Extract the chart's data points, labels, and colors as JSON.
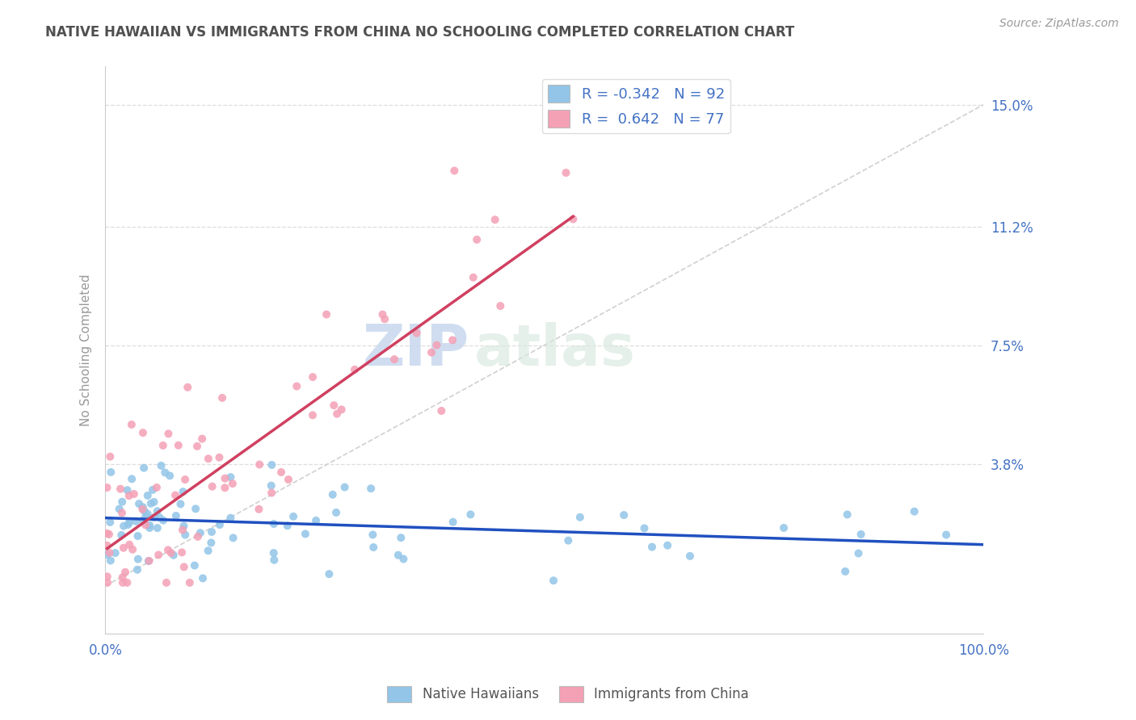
{
  "title": "NATIVE HAWAIIAN VS IMMIGRANTS FROM CHINA NO SCHOOLING COMPLETED CORRELATION CHART",
  "source": "Source: ZipAtlas.com",
  "ylabel": "No Schooling Completed",
  "ytick_labels": [
    "",
    "3.8%",
    "7.5%",
    "11.2%",
    "15.0%"
  ],
  "ytick_values": [
    0.0,
    0.038,
    0.075,
    0.112,
    0.15
  ],
  "xmin": 0.0,
  "xmax": 1.0,
  "ymin": -0.015,
  "ymax": 0.162,
  "blue_scatter_color": "#92C5E8",
  "pink_scatter_color": "#F4A0B5",
  "blue_line_color": "#2050C0",
  "pink_line_color": "#D04060",
  "ref_line_color": "#D0D0D0",
  "grid_color": "#DDDDDD",
  "legend_R_blue": "-0.342",
  "legend_N_blue": "92",
  "legend_R_pink": "0.642",
  "legend_N_pink": "77",
  "title_color": "#505050",
  "tick_label_color": "#4472C4",
  "source_color": "#999999",
  "watermark_zip": "ZIP",
  "watermark_atlas": "atlas",
  "bottom_legend_labels": [
    "Native Hawaiians",
    "Immigrants from China"
  ]
}
